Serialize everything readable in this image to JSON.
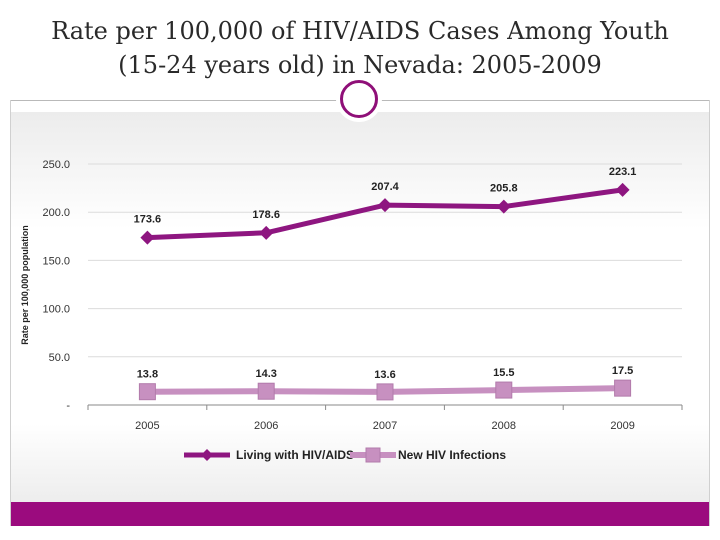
{
  "title": {
    "line1": "Rate per 100,000 of HIV/AIDS Cases Among Youth",
    "line2": "(15-24 years old) in Nevada: 2005-2009"
  },
  "colors": {
    "accent": "#8f0f78",
    "series_living": "#8e1680",
    "series_new": "#c790c0",
    "footer": "#9b0b7e"
  },
  "chart_data": {
    "type": "line",
    "categories": [
      "2005",
      "2006",
      "2007",
      "2008",
      "2009"
    ],
    "series": [
      {
        "name": "Living with HIV/AIDS",
        "values": [
          173.6,
          178.6,
          207.4,
          205.8,
          223.1
        ],
        "labels": [
          "173.6",
          "178.6",
          "207.4",
          "205.8",
          "223.1"
        ]
      },
      {
        "name": "New HIV Infections",
        "values": [
          13.8,
          14.3,
          13.6,
          15.5,
          17.5
        ],
        "labels": [
          "13.8",
          "14.3",
          "13.6",
          "15.5",
          "17.5"
        ]
      }
    ],
    "ylabel": "Rate per 100,000 population",
    "yticks": [
      "250.0",
      "200.0",
      "150.0",
      "100.0",
      "50.0",
      "-"
    ],
    "ylim": [
      0,
      250
    ],
    "grid": true,
    "legend_position": "bottom"
  }
}
